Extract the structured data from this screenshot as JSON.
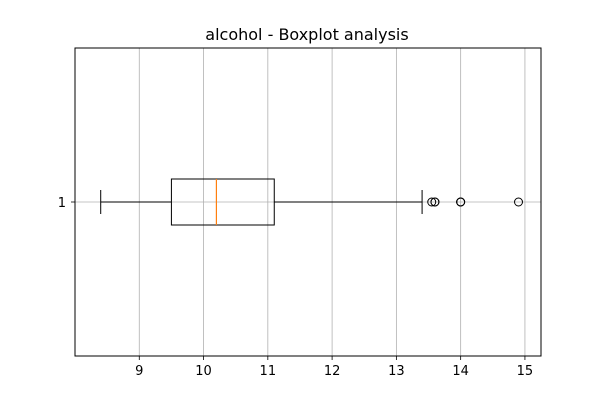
{
  "chart_data": {
    "type": "boxplot",
    "title": "alcohol - Boxplot analysis",
    "orientation": "horizontal",
    "xlim": [
      8.0,
      15.25
    ],
    "x_ticks": [
      9,
      10,
      11,
      12,
      13,
      14,
      15
    ],
    "y_tick_labels": [
      "1"
    ],
    "grid": "vertical",
    "boxes": [
      {
        "label": "1",
        "whisker_low": 8.4,
        "q1": 9.5,
        "median": 10.2,
        "q3": 11.1,
        "whisker_high": 13.4,
        "outliers": [
          13.55,
          13.6,
          13.6,
          14.0,
          14.0,
          14.0,
          14.9
        ]
      }
    ],
    "colors": {
      "box": "#000000",
      "median": "#ff7f0e",
      "grid": "#b0b0b0"
    }
  }
}
